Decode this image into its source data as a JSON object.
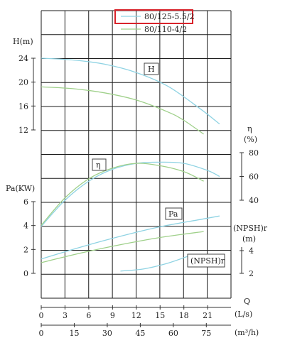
{
  "chart_data": {
    "type": "line",
    "legend": {
      "placement": "top-center",
      "highlighted_entry": 0,
      "entries": [
        {
          "name": "80/125-5.5/2",
          "color": "#8fd3e3"
        },
        {
          "name": "80/110-4/2",
          "color": "#9fd08a"
        }
      ]
    },
    "x_axis": {
      "label": "Q",
      "unit": "(L/s)",
      "ticks": [
        0,
        3,
        6,
        9,
        12,
        15,
        18,
        21
      ],
      "range": [
        0,
        24
      ]
    },
    "x_axis_secondary": {
      "unit": "(m³/h)",
      "ticks": [
        0,
        15,
        30,
        45,
        60,
        75
      ]
    },
    "panels": {
      "head": {
        "label": "H(m)",
        "ticks": [
          12,
          16,
          20,
          24
        ],
        "range": [
          12,
          24
        ],
        "box_label": "H",
        "series": [
          {
            "name": "80/125-5.5/2",
            "x": [
              0,
              4,
              8,
              12,
              16,
              20,
              22.5
            ],
            "y": [
              24,
              23.7,
              23.0,
              21.6,
              19.3,
              15.6,
              13.0
            ]
          },
          {
            "name": "80/110-4/2",
            "x": [
              0,
              4,
              8,
              12,
              16,
              18,
              20.5
            ],
            "y": [
              19.2,
              18.9,
              18.2,
              17.0,
              15.0,
              13.6,
              11.3
            ]
          }
        ]
      },
      "efficiency": {
        "label": "η",
        "unit": "(%)",
        "ticks": [
          40,
          60,
          80
        ],
        "range": [
          40,
          80
        ],
        "box_label": "η",
        "series": [
          {
            "name": "80/125-5.5/2",
            "x": [
              0,
              3,
              6,
              9,
              12,
              15,
              18,
              21,
              22.5
            ],
            "y": [
              18,
              40,
              56,
              66,
              71,
              72,
              71,
              65,
              60
            ]
          },
          {
            "name": "80/110-4/2",
            "x": [
              0,
              3,
              6,
              9,
              12,
              15,
              18,
              20.5
            ],
            "y": [
              19,
              42,
              58,
              67,
              71,
              69,
              64,
              56
            ]
          }
        ]
      },
      "power": {
        "label": "Pa(KW)",
        "ticks": [
          0,
          2,
          4,
          6
        ],
        "range": [
          0,
          6
        ],
        "box_label": "Pa",
        "series": [
          {
            "name": "80/125-5.5/2",
            "x": [
              0,
              5,
              10,
              15,
              20,
              22.5
            ],
            "y": [
              1.2,
              2.2,
              3.1,
              3.9,
              4.5,
              4.8
            ]
          },
          {
            "name": "80/110-4/2",
            "x": [
              0,
              5,
              10,
              15,
              20.5
            ],
            "y": [
              0.9,
              1.7,
              2.4,
              3.0,
              3.5
            ]
          }
        ]
      },
      "npsh": {
        "label": "(NPSH)r",
        "unit": "(m)",
        "ticks": [
          2,
          4
        ],
        "range": [
          1.5,
          4.5
        ],
        "box_label": "(NPSH)r",
        "series": [
          {
            "name": "80/125-5.5/2",
            "x": [
              10,
              13,
              16,
              18.5
            ],
            "y": [
              2.2,
              2.4,
              2.9,
              3.5
            ]
          }
        ]
      }
    }
  }
}
